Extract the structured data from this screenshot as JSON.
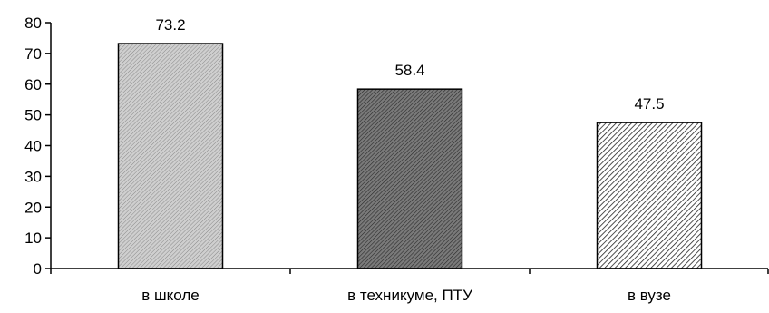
{
  "chart_data": {
    "type": "bar",
    "categories": [
      "в школе",
      "в техникуме, ПТУ",
      "в вузе"
    ],
    "values": [
      73.2,
      58.4,
      47.5
    ],
    "value_labels": [
      "73.2",
      "58.4",
      "47.5"
    ],
    "ylim": [
      0,
      80
    ],
    "yticks": [
      0,
      10,
      20,
      30,
      40,
      50,
      60,
      70,
      80
    ],
    "ytick_labels": [
      "0",
      "10",
      "20",
      "30",
      "40",
      "50",
      "60",
      "70",
      "80"
    ],
    "grid": false,
    "legend": "none",
    "bar_fills": [
      "light-gray-hatched",
      "dark-gray-hatched",
      "diagonal-hatched"
    ],
    "colors": {
      "axis": "#000000",
      "bar_outline": "#000000",
      "bar1_base": "#cccccc",
      "bar2_base": "#666666",
      "bar3_base": "#ffffff",
      "hatch": "#000000"
    }
  }
}
